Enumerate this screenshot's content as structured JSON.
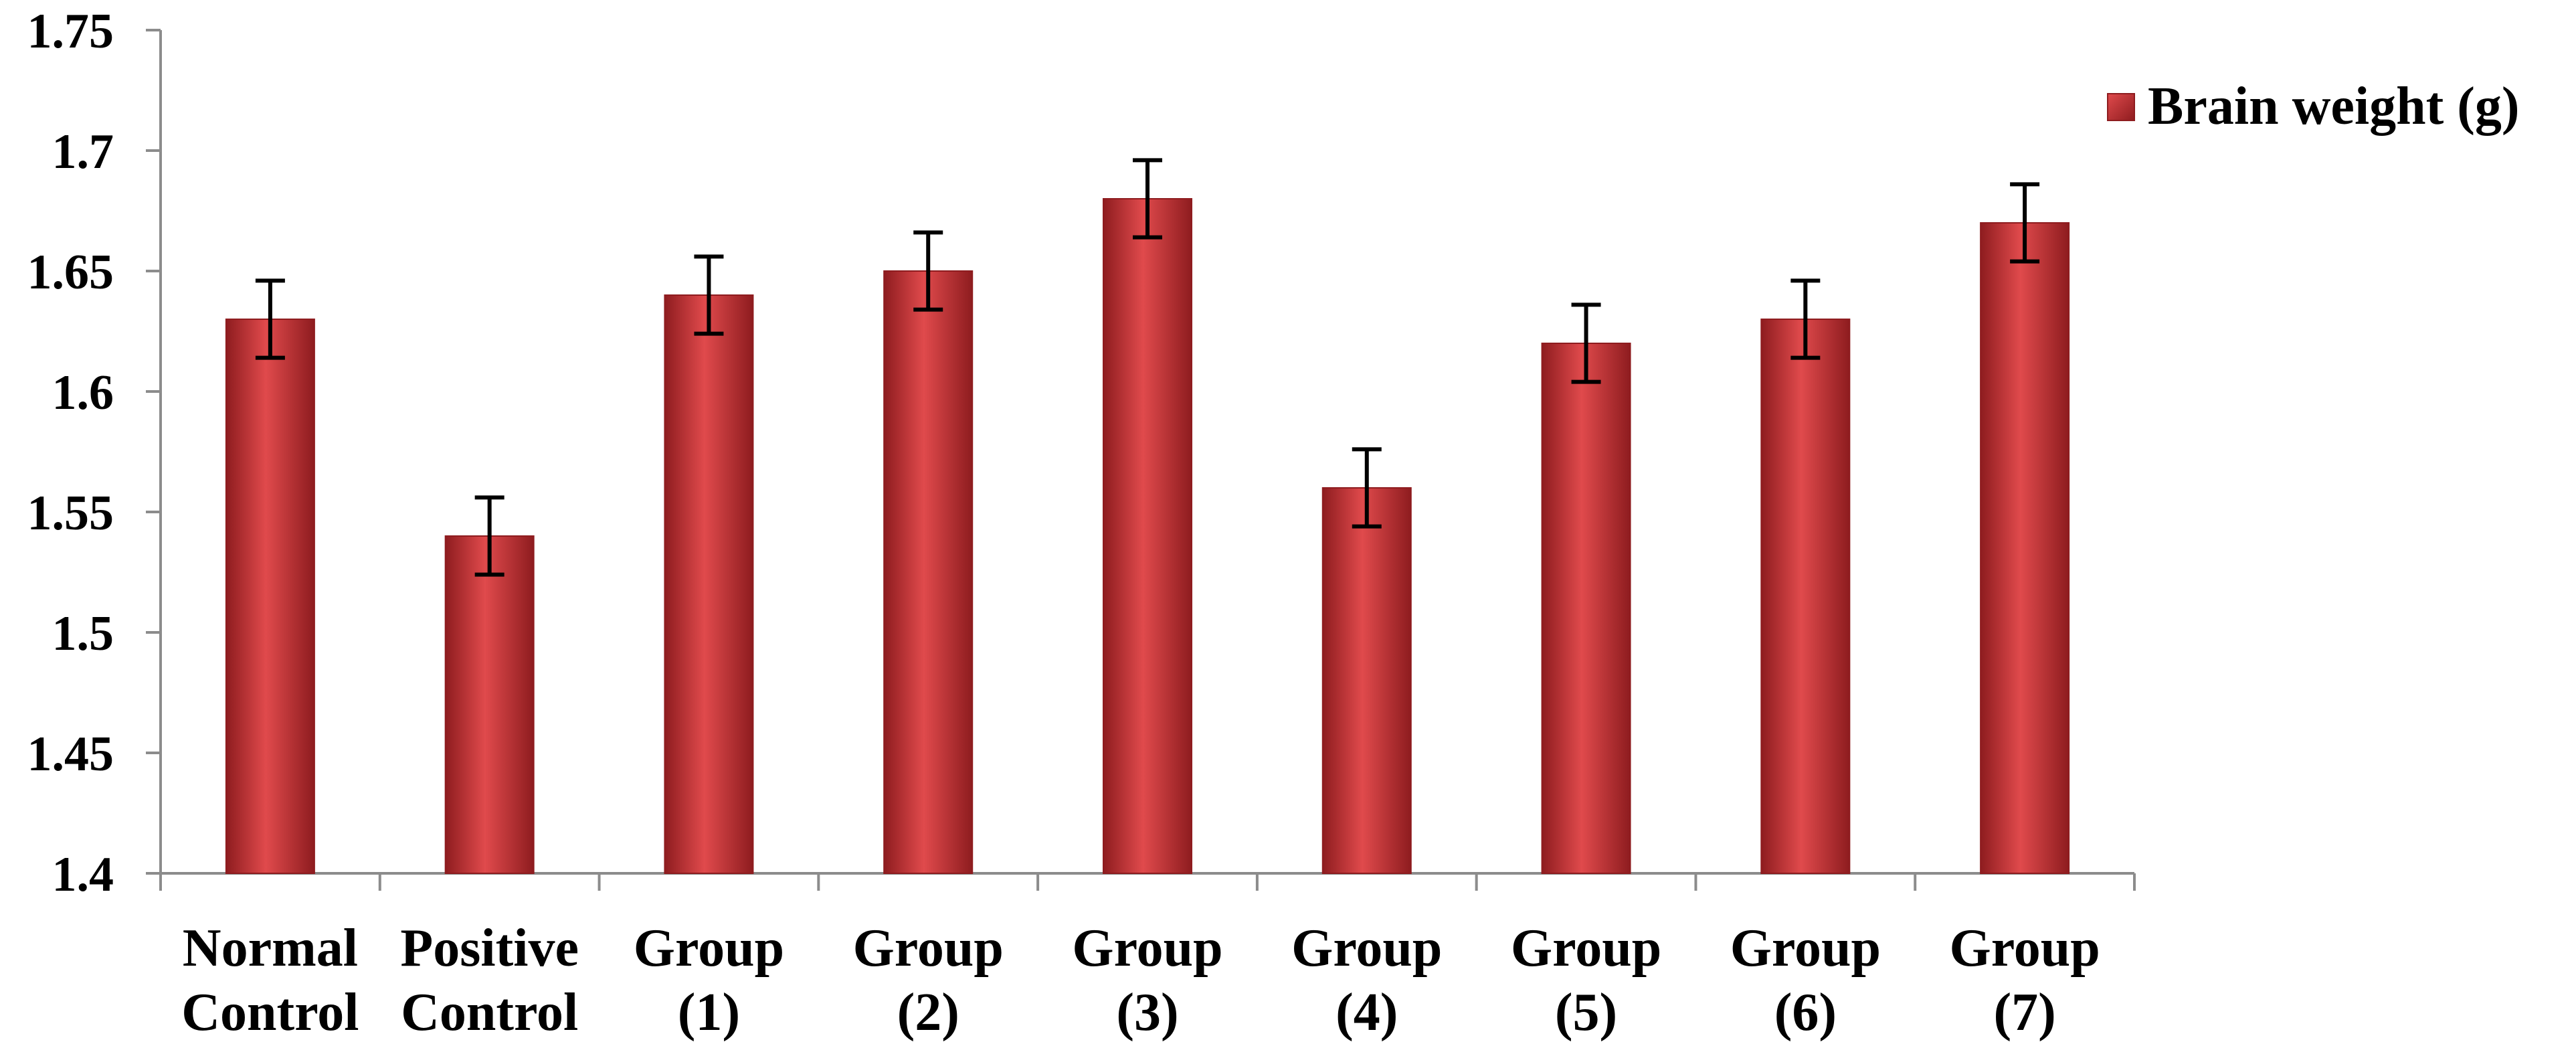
{
  "chart_data": {
    "type": "bar",
    "categories": [
      [
        "Normal",
        "Control"
      ],
      [
        "Positive",
        "Control"
      ],
      [
        "Group",
        "(1)"
      ],
      [
        "Group",
        "(2)"
      ],
      [
        "Group",
        "(3)"
      ],
      [
        "Group",
        "(4)"
      ],
      [
        "Group",
        "(5)"
      ],
      [
        "Group",
        "(6)"
      ],
      [
        "Group",
        "(7)"
      ]
    ],
    "series": [
      {
        "name": "Brain weight (g)",
        "values": [
          1.63,
          1.54,
          1.64,
          1.65,
          1.68,
          1.56,
          1.62,
          1.63,
          1.67
        ],
        "errors": [
          0.016,
          0.016,
          0.016,
          0.016,
          0.016,
          0.016,
          0.016,
          0.016,
          0.016
        ]
      }
    ],
    "yticks": [
      "1.4",
      "1.45",
      "1.5",
      "1.55",
      "1.6",
      "1.65",
      "1.7",
      "1.75"
    ],
    "ylim": [
      1.4,
      1.75
    ],
    "title": "",
    "xlabel": "",
    "ylabel": "",
    "legend_position": "top-right",
    "grid": false,
    "colors": {
      "bar": "#c8373a",
      "bar_light": "#e04a4c",
      "bar_dark": "#8e1c1f",
      "axis": "#8c8c8c",
      "error_bar": "#000000"
    }
  }
}
